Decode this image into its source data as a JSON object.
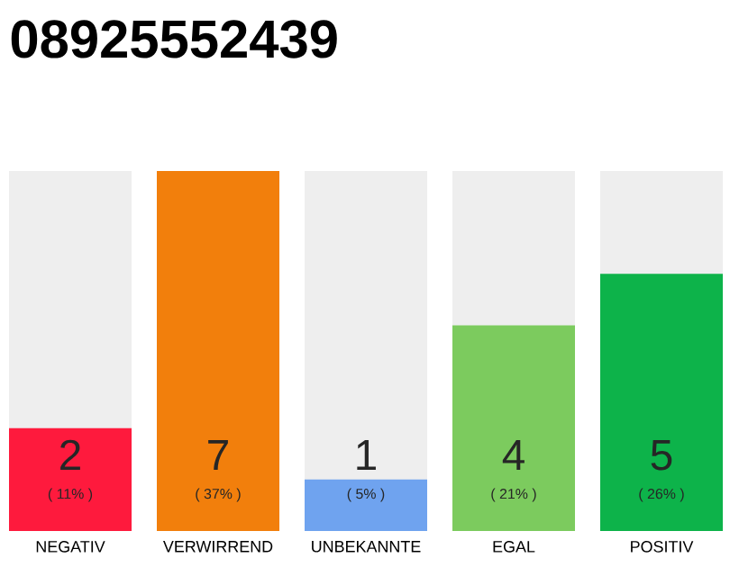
{
  "chart_data": {
    "type": "bar",
    "title": "08925552439",
    "categories": [
      "NEGATIV",
      "VERWIRREND",
      "UNBEKANNTE",
      "EGAL",
      "POSITIV"
    ],
    "values": [
      2,
      7,
      1,
      4,
      5
    ],
    "colors": [
      "#fe1a3d",
      "#f27f0c",
      "#6fa3ef",
      "#7ccb5e",
      "#0db34a"
    ],
    "data_labels": true,
    "tick_labels": "x",
    "annotations": [
      "( 11% )",
      "( 37% )",
      "( 5% )",
      "( 21% )",
      "( 26% )"
    ]
  }
}
